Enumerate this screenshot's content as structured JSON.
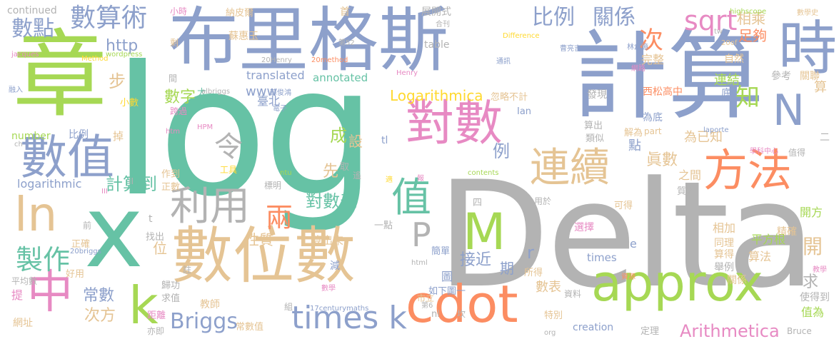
{
  "palette": {
    "teal": "#66c2a5",
    "orange": "#fc8d62",
    "blue": "#8da0cb",
    "pink": "#e78ac3",
    "green": "#a6d854",
    "yellow": "#ffd92f",
    "tan": "#e5c494",
    "gray": "#b3b3b3"
  },
  "words": {
    "log": "log",
    "delta": "Delta",
    "bulisi": "布里格斯",
    "jisuan": "計算",
    "zhang": "章",
    "shuwei": "數位數",
    "duishu": "對數",
    "shuzhi": "數值",
    "x": "x",
    "approx": "approx",
    "cdot": "cdot",
    "fangfa": "方法",
    "lianxu": "連續",
    "shi": "時",
    "zhong": "中",
    "ln": "ln",
    "k": "k",
    "shuzhi2": "值",
    "m": "M",
    "liyong": "利用",
    "times_k": "times k",
    "zhizuo": "製作",
    "shusuanshu": "數算術",
    "sqrt": "sqrt",
    "n": "N",
    "bili": "比例",
    "guanxi": "關係",
    "ling": "令",
    "p": "P",
    "liang": "兩",
    "jisuandao": "計算到",
    "http": "http",
    "briggs": "Briggs",
    "arithmetica": "Arithmetica",
    "logarithmica": "Logarithmica",
    "duishubiao": "對數表",
    "shudian": "數點",
    "ci": "次",
    "zhenshu": "眞數",
    "zhi": "知",
    "xiangcheng": "相乘",
    "zugou": "足夠",
    "wanzheng": "完整",
    "lianjie": "連結",
    "bu": "步",
    "li": "例",
    "cheng": "成",
    "xian": "先",
    "she": "設",
    "shuzi": "數字",
    "xingzhi": "性質",
    "changshu": "常數",
    "cifang": "次方",
    "kai": "開",
    "qiu": "求",
    "r": "r",
    "shubiao": "數表",
    "jiejin": "接近",
    "taibei": "臺北",
    "www": "www",
    "translated": "translated",
    "annotated": "annotated",
    "kaifang": "開方",
    "table": "table",
    "zhanshi": "展開式",
    "sufahui": "蘇惠玉",
    "continued": "continued",
    "logarithmic": "logarithmic",
    "number": "number",
    "x_20briggs": "20briggs",
    "jiaoshi": "教師",
    "wangzhi": "網址",
    "pingfanggen": "平方根",
    "suanfa": "算法",
    "xisong": "西松高中",
    "weidi": "為底",
    "weiyizhi": "為已知",
    "zhijian": "之間",
    "dian": "點",
    "zhishu": "質數",
    "kede": "可得",
    "xiangjia": "相加",
    "xuanze": "選擇",
    "jingque": "精確",
    "tongli": "同理",
    "suande": "算得",
    "juli": "舉例",
    "guanxi2": "關係",
    "zhidewei": "值為",
    "shidezhi": "使得到",
    "bruce": "Bruce",
    "creation": "creation",
    "dingli": "定理",
    "teibie": "特別",
    "ziliao": "資料",
    "suo_de": "所得",
    "qi": "期",
    "tu": "圖",
    "jiandan": "簡單",
    "jian": "減",
    "ruxia": "如下圖一",
    "changshuzhi": "常數值",
    "jiewei": "解為",
    "lapor": "laporte",
    "ian": "Ian",
    "tl": "tl",
    "htm": "htm",
    "ntu": "ntu",
    "contents": "contents",
    "part": "part",
    "times": "times",
    "e": "e",
    "si": "四",
    "suanchu": "算出",
    "suanchulai": "算出來",
    "yidian": "一點",
    "lei": "類似",
    "huluebuji": "忽略不計",
    "faxian": "發現",
    "yongyu": "用於",
    "ziran": "自然",
    "cankao": "參考",
    "guanlian": "關聯",
    "di": "底",
    "suan": "算",
    "er": "二",
    "zhide": "值得",
    "highscope": "highscope",
    "x_20of": "20of",
    "tw": "tw",
    "difference": "Difference",
    "shuxueshi": "數學史",
    "hepm": "HPM",
    "gongju": "工具",
    "zuodao": "作到",
    "zhengshu": "正數",
    "biaoming": "標明",
    "qu": "取",
    "yao": "遙",
    "shou": "首",
    "napier": "納皮爾",
    "xiaoshi": "小時",
    "jacques": "jacques",
    "method": "Method",
    "wordpress": "wordpress",
    "hekan": "合刊",
    "x_52": "第52",
    "yu": "剩",
    "henry": "Henry",
    "x_20henry": "20Henry",
    "x_20method": "20method",
    "xiaoshu": "小數",
    "kuaguo": "跨過",
    "tai": "太",
    "albriggs": "albriggs",
    "jian2": "間",
    "rongru": "融入",
    "ch": "ch",
    "bili2": "比例",
    "diao": "掉",
    "zhaochu": "找出",
    "zhengque": "正確",
    "qian": "前",
    "haoyong": "好用",
    "pingjunshu": "平均數",
    "ti": "提",
    "guigong": "歸功",
    "qiuzhi": "求值",
    "zhu": "註",
    "juli2": "距離",
    "yiji": "亦即",
    "zu": "組",
    "shuxue": "數學",
    "century": "17centurymaths",
    "di6": "第6",
    "nl": "nl",
    "shili": "市立",
    "kan": "坎",
    "org": "org",
    "html": "html",
    "ziyuan": "資源",
    "jiaoxue": "教學",
    "linxin": "林倉億",
    "wanglu": "網路",
    "tongxun": "通訊",
    "xuekezhongxin": "學科中心",
    "caoliang": "曹亮吉",
    "dianzi": "電子",
    "sujunhong": "蘇俊鴻",
    "bao": "報",
    "shi2": "適",
    "iii": "III",
    "ii": "II",
    "t": "t",
    "wei": "位",
    "jiu": "就"
  }
}
